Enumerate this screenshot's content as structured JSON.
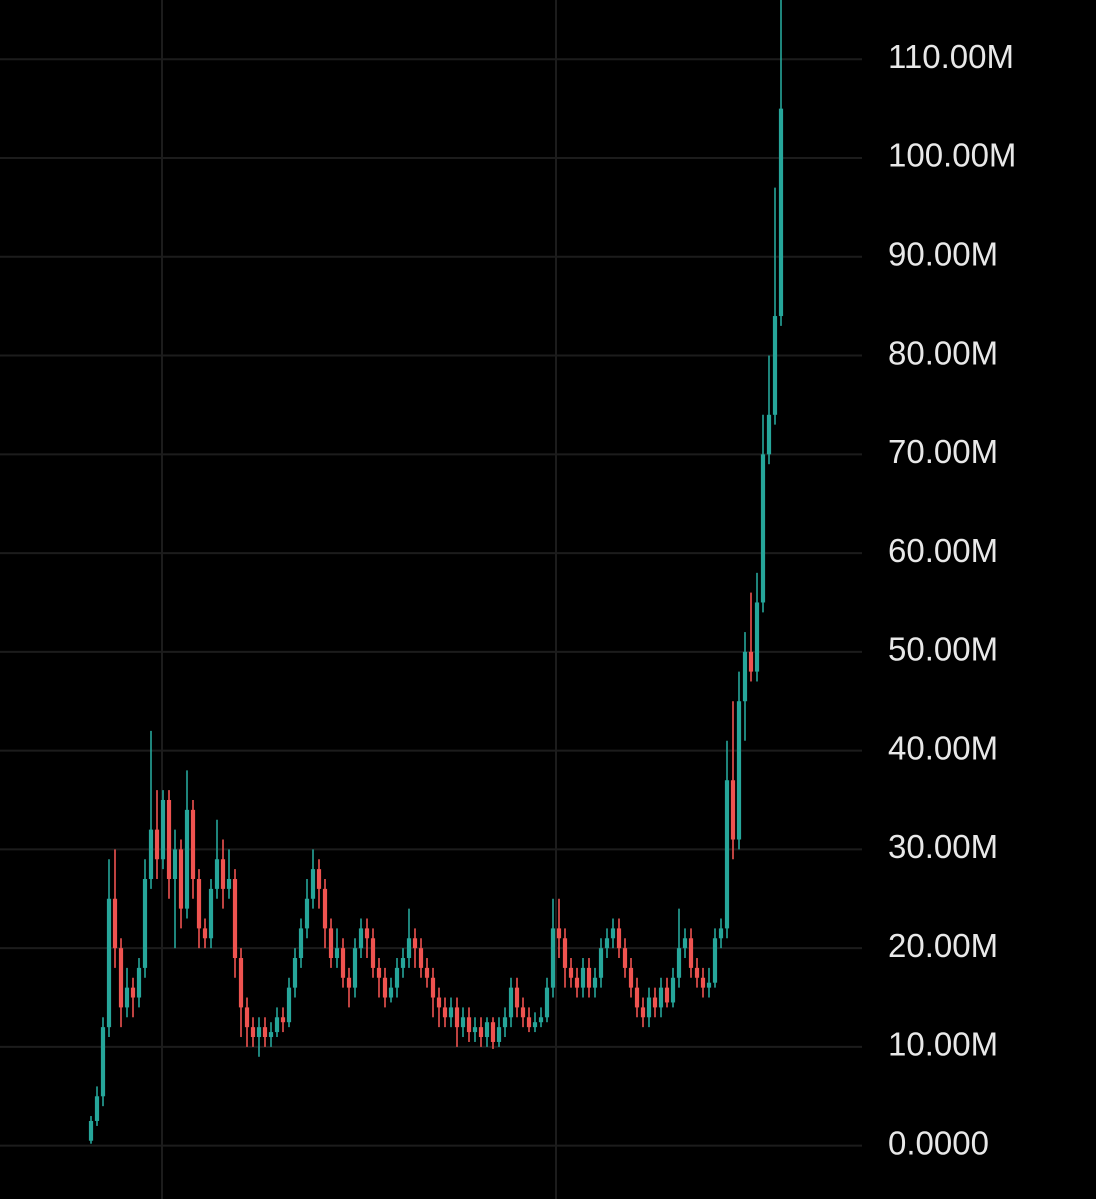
{
  "chart_data": {
    "type": "candlestick",
    "up_color": "#26a69a",
    "down_color": "#ef5350",
    "ylim": [
      -5.4,
      116
    ],
    "yticks": [
      {
        "value": 0,
        "label": "0.0000"
      },
      {
        "value": 10,
        "label": "10.00M"
      },
      {
        "value": 20,
        "label": "20.00M"
      },
      {
        "value": 30,
        "label": "30.00M"
      },
      {
        "value": 40,
        "label": "40.00M"
      },
      {
        "value": 50,
        "label": "50.00M"
      },
      {
        "value": 60,
        "label": "60.00M"
      },
      {
        "value": 70,
        "label": "70.00M"
      },
      {
        "value": 80,
        "label": "80.00M"
      },
      {
        "value": 90,
        "label": "90.00M"
      },
      {
        "value": 100,
        "label": "100.00M"
      },
      {
        "value": 110,
        "label": "110.00M"
      }
    ],
    "grid": true,
    "open": [
      0.5,
      2.5,
      5,
      12,
      25,
      20,
      14,
      16,
      15,
      18,
      27,
      32,
      29,
      35,
      27,
      30,
      24,
      34,
      27,
      22,
      21,
      26,
      29,
      26,
      27,
      19,
      14,
      12,
      11,
      12,
      11,
      11.5,
      13,
      12.5,
      16,
      19,
      22,
      25,
      28,
      26,
      22,
      19,
      20,
      17,
      16,
      20,
      22,
      21,
      18,
      17,
      15,
      16,
      18,
      19,
      21,
      20,
      18,
      17,
      15,
      14,
      13,
      14,
      12,
      13,
      11.5,
      12,
      11,
      12.5,
      10.5,
      12,
      13,
      16,
      14,
      13,
      12,
      12.5,
      13,
      16,
      22,
      21,
      18,
      17,
      16,
      18,
      16,
      17,
      20,
      21,
      22,
      20,
      18,
      16,
      14,
      13,
      15,
      14,
      16,
      14.5,
      17,
      20,
      21,
      18,
      17,
      16,
      16.5,
      21,
      22,
      37,
      31,
      45,
      50,
      48,
      55,
      70,
      74,
      84
    ],
    "high": [
      3,
      6,
      13,
      29,
      30,
      21,
      18,
      17,
      19,
      29,
      42,
      36,
      36,
      36,
      32,
      31,
      38,
      35,
      28,
      23,
      27,
      33,
      31,
      30,
      28,
      20,
      15,
      13,
      13,
      13,
      12.5,
      14,
      14,
      17,
      20,
      23,
      27,
      30,
      29,
      27,
      23,
      22,
      21,
      18,
      21,
      23,
      23,
      22,
      19,
      18,
      17,
      19,
      20,
      24,
      22,
      21,
      19,
      18,
      16,
      15,
      15,
      15,
      14,
      14,
      13,
      13,
      13,
      13,
      13,
      14,
      17,
      17,
      15,
      14,
      13.5,
      14,
      17,
      25,
      25,
      22,
      19,
      18,
      19,
      19,
      18,
      21,
      22,
      23,
      23,
      21,
      19,
      17,
      15,
      16,
      16,
      17,
      17,
      18,
      24,
      22,
      22,
      19,
      18,
      18,
      22,
      23,
      41,
      45,
      48,
      52,
      56,
      58,
      74,
      80,
      97,
      118
    ],
    "low": [
      0.2,
      2,
      4,
      11,
      18,
      12,
      13,
      13,
      14,
      17,
      26,
      27,
      28,
      25,
      20,
      22,
      23,
      25,
      20,
      20,
      20,
      25,
      24,
      25,
      17,
      11,
      10,
      10,
      9,
      10,
      10,
      11,
      11.5,
      12,
      15,
      18,
      21,
      24,
      24,
      20,
      18,
      18,
      16,
      14,
      15,
      19,
      19,
      17,
      15,
      14,
      14.5,
      15,
      17,
      18,
      18,
      17,
      16,
      13,
      12,
      12,
      12,
      10,
      11,
      10.5,
      10.5,
      10,
      10,
      9.8,
      10,
      11,
      12,
      13,
      12,
      11.5,
      11.5,
      12,
      12.5,
      15,
      19,
      16,
      16,
      15,
      15,
      15,
      15,
      16,
      19,
      20,
      19,
      17,
      15,
      13,
      12,
      12,
      13,
      13,
      14,
      14,
      16,
      19,
      17,
      16,
      15,
      15,
      16,
      20,
      21,
      29,
      30,
      41,
      47,
      47,
      54,
      69,
      73,
      83
    ],
    "close": [
      2.5,
      5,
      12,
      25,
      20,
      14,
      16,
      15,
      18,
      27,
      32,
      29,
      35,
      27,
      30,
      24,
      34,
      27,
      22,
      21,
      26,
      29,
      26,
      27,
      19,
      14,
      12,
      11,
      12,
      11,
      11.5,
      13,
      12.5,
      16,
      19,
      22,
      25,
      28,
      26,
      22,
      19,
      20,
      17,
      16,
      20,
      22,
      21,
      18,
      17,
      15,
      16,
      18,
      19,
      21,
      20,
      18,
      17,
      15,
      14,
      13,
      14,
      12,
      13,
      11.5,
      12,
      11,
      12.5,
      10.5,
      12,
      13,
      16,
      14,
      13,
      12,
      12.5,
      13,
      16,
      22,
      21,
      18,
      17,
      16,
      18,
      16,
      17,
      20,
      21,
      22,
      20,
      18,
      16,
      14,
      13,
      15,
      14,
      16,
      14.5,
      17,
      20,
      21,
      18,
      17,
      16,
      16.5,
      21,
      22,
      37,
      31,
      45,
      50,
      48,
      55,
      70,
      74,
      84,
      105
    ]
  }
}
